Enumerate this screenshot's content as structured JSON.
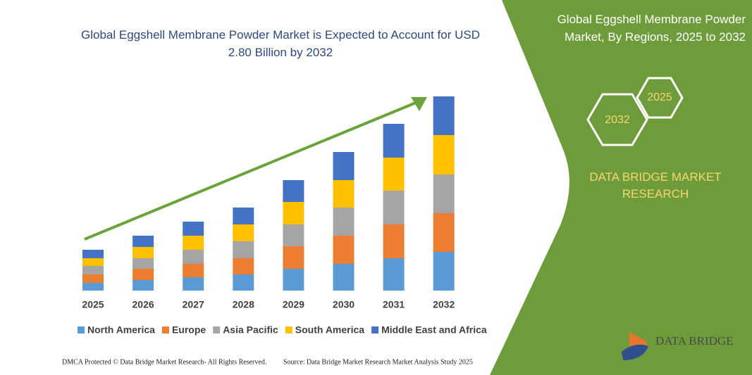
{
  "chart_data": {
    "type": "bar",
    "stacked": true,
    "title": "Global Eggshell Membrane Powder Market is Expected to Account for USD 2.80 Billion by 2032",
    "categories": [
      "2025",
      "2026",
      "2027",
      "2028",
      "2029",
      "2030",
      "2031",
      "2032"
    ],
    "series": [
      {
        "name": "North America",
        "color": "#5b9bd5",
        "values": [
          11,
          15,
          19,
          23,
          31,
          38,
          46,
          55
        ]
      },
      {
        "name": "Europe",
        "color": "#ed7d31",
        "values": [
          12,
          16,
          19,
          23,
          32,
          40,
          48,
          55
        ]
      },
      {
        "name": "Asia Pacific",
        "color": "#a5a5a5",
        "values": [
          12,
          15,
          20,
          24,
          31,
          40,
          48,
          55
        ]
      },
      {
        "name": "South America",
        "color": "#ffc000",
        "values": [
          11,
          16,
          20,
          24,
          32,
          39,
          47,
          56
        ]
      },
      {
        "name": "Middle East and Africa",
        "color": "#4472c4",
        "values": [
          12,
          16,
          20,
          24,
          31,
          40,
          48,
          55
        ]
      }
    ],
    "ylim": [
      0,
      276
    ]
  },
  "panel": {
    "title": "Global Eggshell Membrane Powder Market, By Regions, 2025 to 2032",
    "hexagons": [
      "2025",
      "2032"
    ],
    "brand": "DATA BRIDGE MARKET RESEARCH"
  },
  "logo": "DATA BRIDGE",
  "footer": {
    "left": "DMCA Protected © Data Bridge Market Research- All Rights Reserved.",
    "right": "Source: Data Bridge Market Research  Market Analysis Study 2025"
  }
}
